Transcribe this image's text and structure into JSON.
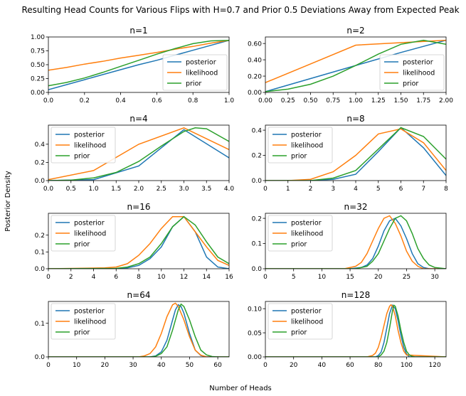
{
  "figure": {
    "suptitle": "Resulting Head Counts for Various Flips with H=0.7 and Prior 0.5 Deviations Away from Expected Peak",
    "xlabel": "Number of Heads",
    "ylabel": "Posterior Density"
  },
  "colors": {
    "posterior": "#1f77b4",
    "likelihood": "#ff7f0e",
    "prior": "#2ca02c"
  },
  "chart_data": [
    {
      "type": "line",
      "title": "n=1",
      "legend": "lower right",
      "xlim": [
        0,
        1
      ],
      "ylim": [
        0,
        1.0
      ],
      "xticks": [
        0,
        0.2,
        0.4,
        0.6,
        0.8,
        1.0
      ],
      "xtick_labels": [
        "0.0",
        "0.2",
        "0.4",
        "0.6",
        "0.8",
        "1.0"
      ],
      "yticks": [
        0,
        0.25,
        0.5,
        0.75,
        1.0
      ],
      "ytick_labels": [
        "0.00",
        "0.25",
        "0.50",
        "0.75",
        "1.00"
      ],
      "series": [
        {
          "name": "posterior",
          "x": [
            0,
            0.1,
            0.2,
            0.3,
            0.4,
            0.5,
            0.6,
            0.7,
            0.8,
            0.9,
            1.0
          ],
          "y": [
            0.05,
            0.14,
            0.23,
            0.32,
            0.41,
            0.5,
            0.58,
            0.67,
            0.76,
            0.85,
            0.94
          ]
        },
        {
          "name": "likelihood",
          "x": [
            0,
            0.1,
            0.2,
            0.3,
            0.4,
            0.5,
            0.6,
            0.7,
            0.8,
            0.9,
            1.0
          ],
          "y": [
            0.4,
            0.45,
            0.51,
            0.56,
            0.62,
            0.67,
            0.72,
            0.78,
            0.83,
            0.89,
            0.94
          ]
        },
        {
          "name": "prior",
          "x": [
            0,
            0.1,
            0.2,
            0.3,
            0.4,
            0.5,
            0.6,
            0.7,
            0.8,
            0.9,
            1.0
          ],
          "y": [
            0.12,
            0.18,
            0.26,
            0.36,
            0.47,
            0.58,
            0.69,
            0.79,
            0.88,
            0.93,
            0.94
          ]
        }
      ]
    },
    {
      "type": "line",
      "title": "n=2",
      "legend": "lower right",
      "xlim": [
        0,
        2
      ],
      "ylim": [
        0,
        0.68
      ],
      "xticks": [
        0,
        0.25,
        0.5,
        0.75,
        1.0,
        1.25,
        1.5,
        1.75,
        2.0
      ],
      "xtick_labels": [
        "0.00",
        "0.25",
        "0.50",
        "0.75",
        "1.00",
        "1.25",
        "1.50",
        "1.75",
        "2.00"
      ],
      "yticks": [
        0,
        0.2,
        0.4,
        0.6
      ],
      "ytick_labels": [
        "0.00",
        "0.20",
        "0.40",
        "0.60"
      ],
      "series": [
        {
          "name": "posterior",
          "x": [
            0,
            0.5,
            1.0,
            1.5,
            2.0
          ],
          "y": [
            0.01,
            0.17,
            0.33,
            0.49,
            0.64
          ]
        },
        {
          "name": "likelihood",
          "x": [
            0,
            0.5,
            1.0,
            1.5,
            2.0
          ],
          "y": [
            0.12,
            0.35,
            0.58,
            0.61,
            0.64
          ]
        },
        {
          "name": "prior",
          "x": [
            0,
            0.25,
            0.5,
            0.75,
            1.0,
            1.25,
            1.5,
            1.75,
            2.0
          ],
          "y": [
            0.01,
            0.04,
            0.1,
            0.2,
            0.33,
            0.47,
            0.59,
            0.64,
            0.59
          ]
        }
      ]
    },
    {
      "type": "line",
      "title": "n=4",
      "legend": "upper left",
      "xlim": [
        0,
        4
      ],
      "ylim": [
        0,
        0.61
      ],
      "xticks": [
        0,
        0.5,
        1.0,
        1.5,
        2.0,
        2.5,
        3.0,
        3.5,
        4.0
      ],
      "xtick_labels": [
        "0.0",
        "0.5",
        "1.0",
        "1.5",
        "2.0",
        "2.5",
        "3.0",
        "3.5",
        "4.0"
      ],
      "yticks": [
        0,
        0.2,
        0.4
      ],
      "ytick_labels": [
        "0.0",
        "0.2",
        "0.4"
      ],
      "series": [
        {
          "name": "posterior",
          "x": [
            0,
            1,
            2,
            3,
            4
          ],
          "y": [
            0.0,
            0.01,
            0.16,
            0.56,
            0.25
          ]
        },
        {
          "name": "likelihood",
          "x": [
            0,
            1,
            2,
            3,
            4
          ],
          "y": [
            0.01,
            0.11,
            0.4,
            0.58,
            0.34
          ]
        },
        {
          "name": "prior",
          "x": [
            0,
            0.5,
            1.0,
            1.5,
            2.0,
            2.5,
            3.0,
            3.25,
            3.5,
            4.0
          ],
          "y": [
            0.0,
            0.005,
            0.03,
            0.09,
            0.21,
            0.38,
            0.54,
            0.58,
            0.57,
            0.43
          ]
        }
      ]
    },
    {
      "type": "line",
      "title": "n=8",
      "legend": "upper left",
      "xlim": [
        0,
        8
      ],
      "ylim": [
        0,
        0.44
      ],
      "xticks": [
        0,
        1,
        2,
        3,
        4,
        5,
        6,
        7,
        8
      ],
      "xtick_labels": [
        "0",
        "1",
        "2",
        "3",
        "4",
        "5",
        "6",
        "7",
        "8"
      ],
      "yticks": [
        0,
        0.2,
        0.4
      ],
      "ytick_labels": [
        "0.0",
        "0.2",
        "0.4"
      ],
      "series": [
        {
          "name": "posterior",
          "x": [
            0,
            1,
            2,
            3,
            4,
            5,
            6,
            7,
            8
          ],
          "y": [
            0,
            0,
            0,
            0.01,
            0.05,
            0.23,
            0.42,
            0.26,
            0.04
          ]
        },
        {
          "name": "likelihood",
          "x": [
            0,
            1,
            2,
            3,
            4,
            5,
            6,
            7,
            8
          ],
          "y": [
            0,
            0,
            0.01,
            0.07,
            0.2,
            0.37,
            0.41,
            0.3,
            0.08
          ]
        },
        {
          "name": "prior",
          "x": [
            0,
            1,
            2,
            3,
            4,
            5,
            6,
            7,
            8
          ],
          "y": [
            0,
            0,
            0,
            0.02,
            0.08,
            0.25,
            0.42,
            0.35,
            0.17
          ]
        }
      ]
    },
    {
      "type": "line",
      "title": "n=16",
      "legend": "upper left",
      "xlim": [
        0,
        16
      ],
      "ylim": [
        0,
        0.33
      ],
      "xticks": [
        0,
        2,
        4,
        6,
        8,
        10,
        12,
        14,
        16
      ],
      "xtick_labels": [
        "0",
        "2",
        "4",
        "6",
        "8",
        "10",
        "12",
        "14",
        "16"
      ],
      "yticks": [
        0,
        0.1,
        0.2
      ],
      "ytick_labels": [
        "0.0",
        "0.1",
        "0.2"
      ],
      "series": [
        {
          "name": "posterior",
          "x": [
            0,
            6,
            7,
            8,
            9,
            10,
            11,
            12,
            13,
            14,
            15,
            16
          ],
          "y": [
            0,
            0,
            0.005,
            0.02,
            0.06,
            0.13,
            0.25,
            0.31,
            0.22,
            0.07,
            0.01,
            0
          ]
        },
        {
          "name": "likelihood",
          "x": [
            0,
            5,
            6,
            7,
            8,
            9,
            10,
            11,
            12,
            13,
            14,
            15,
            16
          ],
          "y": [
            0,
            0.005,
            0.01,
            0.03,
            0.08,
            0.15,
            0.24,
            0.31,
            0.31,
            0.22,
            0.13,
            0.05,
            0.02
          ]
        },
        {
          "name": "prior",
          "x": [
            0,
            6,
            7,
            8,
            9,
            10,
            11,
            12,
            13,
            14,
            15,
            16
          ],
          "y": [
            0,
            0.002,
            0.01,
            0.03,
            0.07,
            0.15,
            0.25,
            0.31,
            0.26,
            0.16,
            0.07,
            0.03
          ]
        }
      ]
    },
    {
      "type": "line",
      "title": "n=32",
      "legend": "upper left",
      "xlim": [
        0,
        32
      ],
      "ylim": [
        0,
        0.22
      ],
      "xticks": [
        0,
        5,
        10,
        15,
        20,
        25,
        30
      ],
      "xtick_labels": [
        "0",
        "5",
        "10",
        "15",
        "20",
        "25",
        "30"
      ],
      "yticks": [
        0,
        0.1,
        0.2
      ],
      "ytick_labels": [
        "0.0",
        "0.1",
        "0.2"
      ],
      "series": [
        {
          "name": "posterior",
          "x": [
            0,
            15,
            17,
            18,
            19,
            20,
            21,
            22,
            23,
            24,
            25,
            26,
            27,
            28,
            29,
            32
          ],
          "y": [
            0,
            0,
            0.005,
            0.015,
            0.04,
            0.09,
            0.15,
            0.19,
            0.2,
            0.17,
            0.12,
            0.06,
            0.02,
            0.005,
            0,
            0
          ]
        },
        {
          "name": "likelihood",
          "x": [
            0,
            14,
            16,
            17,
            18,
            19,
            20,
            21,
            22,
            23,
            24,
            25,
            26,
            27,
            28,
            32
          ],
          "y": [
            0,
            0,
            0.01,
            0.025,
            0.06,
            0.11,
            0.16,
            0.2,
            0.21,
            0.18,
            0.13,
            0.07,
            0.03,
            0.01,
            0,
            0
          ]
        },
        {
          "name": "prior",
          "x": [
            0,
            16,
            18,
            19,
            20,
            21,
            22,
            23,
            24,
            25,
            26,
            27,
            28,
            29,
            30,
            32
          ],
          "y": [
            0,
            0,
            0.01,
            0.03,
            0.06,
            0.11,
            0.16,
            0.2,
            0.21,
            0.19,
            0.14,
            0.08,
            0.04,
            0.015,
            0.005,
            0
          ]
        }
      ]
    },
    {
      "type": "line",
      "title": "n=64",
      "legend": "upper left",
      "xlim": [
        0,
        64
      ],
      "ylim": [
        0,
        0.165
      ],
      "xticks": [
        0,
        10,
        20,
        30,
        40,
        50,
        60
      ],
      "xtick_labels": [
        "0",
        "10",
        "20",
        "30",
        "40",
        "50",
        "60"
      ],
      "yticks": [
        0,
        0.1
      ],
      "ytick_labels": [
        "0.0",
        "0.1"
      ],
      "series": [
        {
          "name": "posterior",
          "x": [
            0,
            36,
            38,
            40,
            42,
            43,
            44,
            45,
            46,
            47,
            48,
            50,
            52,
            54,
            56,
            64
          ],
          "y": [
            0,
            0,
            0.003,
            0.015,
            0.05,
            0.08,
            0.11,
            0.14,
            0.155,
            0.15,
            0.13,
            0.07,
            0.02,
            0.004,
            0,
            0
          ]
        },
        {
          "name": "likelihood",
          "x": [
            0,
            32,
            34,
            36,
            38,
            40,
            42,
            44,
            45,
            46,
            48,
            50,
            52,
            54,
            56,
            64
          ],
          "y": [
            0,
            0,
            0.003,
            0.01,
            0.03,
            0.07,
            0.12,
            0.155,
            0.16,
            0.15,
            0.11,
            0.06,
            0.02,
            0.005,
            0,
            0
          ]
        },
        {
          "name": "prior",
          "x": [
            0,
            36,
            38,
            40,
            42,
            44,
            46,
            47,
            48,
            50,
            52,
            54,
            56,
            58,
            60,
            64
          ],
          "y": [
            0,
            0,
            0.002,
            0.01,
            0.03,
            0.08,
            0.14,
            0.157,
            0.15,
            0.11,
            0.06,
            0.02,
            0.006,
            0.001,
            0,
            0
          ]
        }
      ]
    },
    {
      "type": "line",
      "title": "n=128",
      "legend": "upper left",
      "xlim": [
        0,
        128
      ],
      "ylim": [
        0,
        0.115
      ],
      "xticks": [
        0,
        20,
        40,
        60,
        80,
        100,
        120
      ],
      "xtick_labels": [
        "0",
        "20",
        "40",
        "60",
        "80",
        "100",
        "120"
      ],
      "yticks": [
        0,
        0.05,
        0.1
      ],
      "ytick_labels": [
        "0.00",
        "0.05",
        "0.10"
      ],
      "series": [
        {
          "name": "posterior",
          "x": [
            0,
            78,
            80,
            82,
            84,
            86,
            88,
            90,
            92,
            94,
            96,
            98,
            100,
            102,
            128
          ],
          "y": [
            0,
            0,
            0.003,
            0.01,
            0.03,
            0.06,
            0.09,
            0.107,
            0.1,
            0.075,
            0.045,
            0.02,
            0.006,
            0,
            0
          ]
        },
        {
          "name": "likelihood",
          "x": [
            0,
            72,
            76,
            78,
            80,
            82,
            84,
            86,
            88,
            89,
            90,
            92,
            94,
            96,
            98,
            100,
            128
          ],
          "y": [
            0,
            0,
            0.003,
            0.008,
            0.02,
            0.04,
            0.065,
            0.09,
            0.105,
            0.108,
            0.105,
            0.085,
            0.055,
            0.03,
            0.012,
            0.004,
            0
          ]
        },
        {
          "name": "prior",
          "x": [
            0,
            80,
            82,
            84,
            86,
            88,
            90,
            91,
            92,
            94,
            96,
            98,
            100,
            102,
            104,
            106,
            128
          ],
          "y": [
            0,
            0,
            0.004,
            0.012,
            0.03,
            0.06,
            0.095,
            0.107,
            0.105,
            0.085,
            0.055,
            0.03,
            0.012,
            0.004,
            0.001,
            0,
            0
          ]
        }
      ]
    }
  ]
}
